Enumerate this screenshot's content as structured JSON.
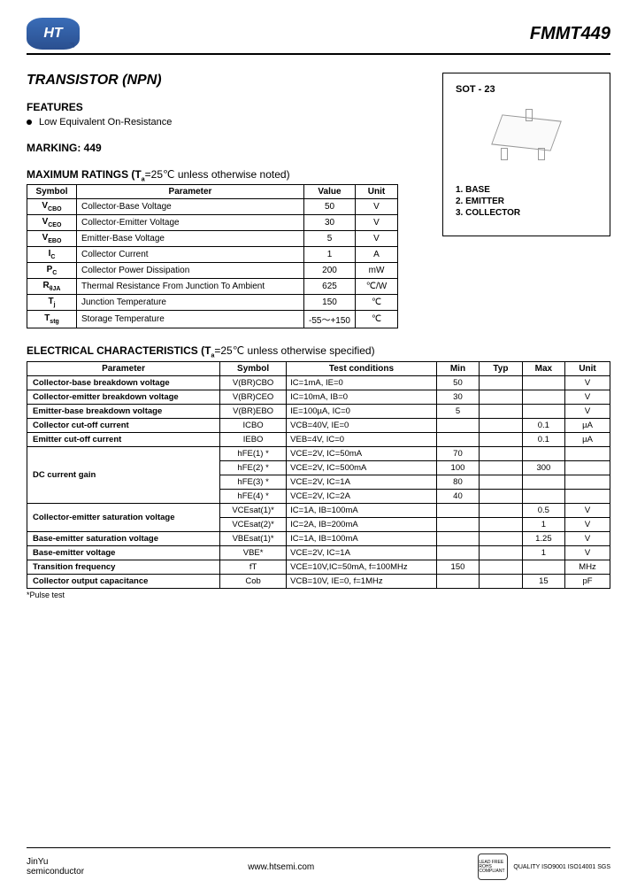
{
  "header": {
    "logo_text": "HT",
    "part_number": "FMMT449"
  },
  "title": "TRANSISTOR  (NPN)",
  "features": {
    "heading": "FEATURES",
    "items": [
      "Low Equivalent On-Resistance"
    ]
  },
  "marking": "MARKING: 449",
  "package": {
    "title": "SOT - 23",
    "pins": [
      "1. BASE",
      "2. EMITTER",
      "3. COLLECTOR"
    ]
  },
  "ratings": {
    "heading": "MAXIMUM RATINGS (T",
    "heading_sub": "a",
    "heading_tail": "=25℃ unless otherwise noted)",
    "columns": [
      "Symbol",
      "Parameter",
      "Value",
      "Unit"
    ],
    "rows": [
      {
        "sym": "V",
        "sub": "CBO",
        "param": "Collector-Base Voltage",
        "val": "50",
        "unit": "V"
      },
      {
        "sym": "V",
        "sub": "CEO",
        "param": "Collector-Emitter Voltage",
        "val": "30",
        "unit": "V"
      },
      {
        "sym": "V",
        "sub": "EBO",
        "param": "Emitter-Base Voltage",
        "val": "5",
        "unit": "V"
      },
      {
        "sym": "I",
        "sub": "C",
        "param": "Collector Current",
        "val": "1",
        "unit": "A"
      },
      {
        "sym": "P",
        "sub": "C",
        "param": "Collector Power Dissipation",
        "val": "200",
        "unit": "mW"
      },
      {
        "sym": "R",
        "sub": "θJA",
        "param": "Thermal Resistance From Junction To Ambient",
        "val": "625",
        "unit": "℃/W"
      },
      {
        "sym": "T",
        "sub": "j",
        "param": "Junction Temperature",
        "val": "150",
        "unit": "℃"
      },
      {
        "sym": "T",
        "sub": "stg",
        "param": "Storage Temperature",
        "val": "-55～+150",
        "unit": "℃"
      }
    ]
  },
  "electrical": {
    "heading": "ELECTRICAL CHARACTERISTICS (T",
    "heading_sub": "a",
    "heading_tail": "=25℃ unless otherwise specified)",
    "columns": [
      "Parameter",
      "Symbol",
      "Test    conditions",
      "Min",
      "Typ",
      "Max",
      "Unit"
    ],
    "note": "*Pulse test",
    "rows": [
      {
        "param": "Collector-base breakdown voltage",
        "symbol": "V(BR)CBO",
        "cond": "IC=1mA, IE=0",
        "min": "50",
        "typ": "",
        "max": "",
        "unit": "V",
        "rowspan": 1
      },
      {
        "param": "Collector-emitter breakdown voltage",
        "symbol": "V(BR)CEO",
        "cond": "IC=10mA, IB=0",
        "min": "30",
        "typ": "",
        "max": "",
        "unit": "V",
        "rowspan": 1
      },
      {
        "param": "Emitter-base breakdown voltage",
        "symbol": "V(BR)EBO",
        "cond": "IE=100µA, IC=0",
        "min": "5",
        "typ": "",
        "max": "",
        "unit": "V",
        "rowspan": 1
      },
      {
        "param": "Collector cut-off current",
        "symbol": "ICBO",
        "cond": "VCB=40V, IE=0",
        "min": "",
        "typ": "",
        "max": "0.1",
        "unit": "µA",
        "rowspan": 1
      },
      {
        "param": "Emitter cut-off current",
        "symbol": "IEBO",
        "cond": "VEB=4V, IC=0",
        "min": "",
        "typ": "",
        "max": "0.1",
        "unit": "µA",
        "rowspan": 1
      }
    ],
    "dc_gain": {
      "param": "DC current gain",
      "rows": [
        {
          "symbol": "hFE(1) *",
          "cond": "VCE=2V, IC=50mA",
          "min": "70",
          "typ": "",
          "max": "",
          "unit": ""
        },
        {
          "symbol": "hFE(2) *",
          "cond": "VCE=2V, IC=500mA",
          "min": "100",
          "typ": "",
          "max": "300",
          "unit": ""
        },
        {
          "symbol": "hFE(3) *",
          "cond": "VCE=2V, IC=1A",
          "min": "80",
          "typ": "",
          "max": "",
          "unit": ""
        },
        {
          "symbol": "hFE(4) *",
          "cond": "VCE=2V, IC=2A",
          "min": "40",
          "typ": "",
          "max": "",
          "unit": ""
        }
      ]
    },
    "ce_sat": {
      "param": "Collector-emitter saturation voltage",
      "rows": [
        {
          "symbol": "VCEsat(1)*",
          "cond": "IC=1A, IB=100mA",
          "min": "",
          "typ": "",
          "max": "0.5",
          "unit": "V"
        },
        {
          "symbol": "VCEsat(2)*",
          "cond": "IC=2A, IB=200mA",
          "min": "",
          "typ": "",
          "max": "1",
          "unit": "V"
        }
      ]
    },
    "tail_rows": [
      {
        "param": "Base-emitter saturation voltage",
        "symbol": "VBEsat(1)*",
        "cond": "IC=1A, IB=100mA",
        "min": "",
        "typ": "",
        "max": "1.25",
        "unit": "V"
      },
      {
        "param": "Base-emitter voltage",
        "symbol": "VBE*",
        "cond": "VCE=2V, IC=1A",
        "min": "",
        "typ": "",
        "max": "1",
        "unit": "V"
      },
      {
        "param": "Transition frequency",
        "symbol": "fT",
        "cond": "VCE=10V,IC=50mA, f=100MHz",
        "min": "150",
        "typ": "",
        "max": "",
        "unit": "MHz"
      },
      {
        "param": "Collector output capacitance",
        "symbol": "Cob",
        "cond": "VCB=10V, IE=0, f=1MHz",
        "min": "",
        "typ": "",
        "max": "15",
        "unit": "pF"
      }
    ]
  },
  "footer": {
    "left1": "JinYu",
    "left2": "semiconductor",
    "center": "www.htsemi.com",
    "cert1": "LEAD FREE ROHS COMPLIANT",
    "cert2": "QUALITY ISO9001 ISO14001 SGS"
  }
}
